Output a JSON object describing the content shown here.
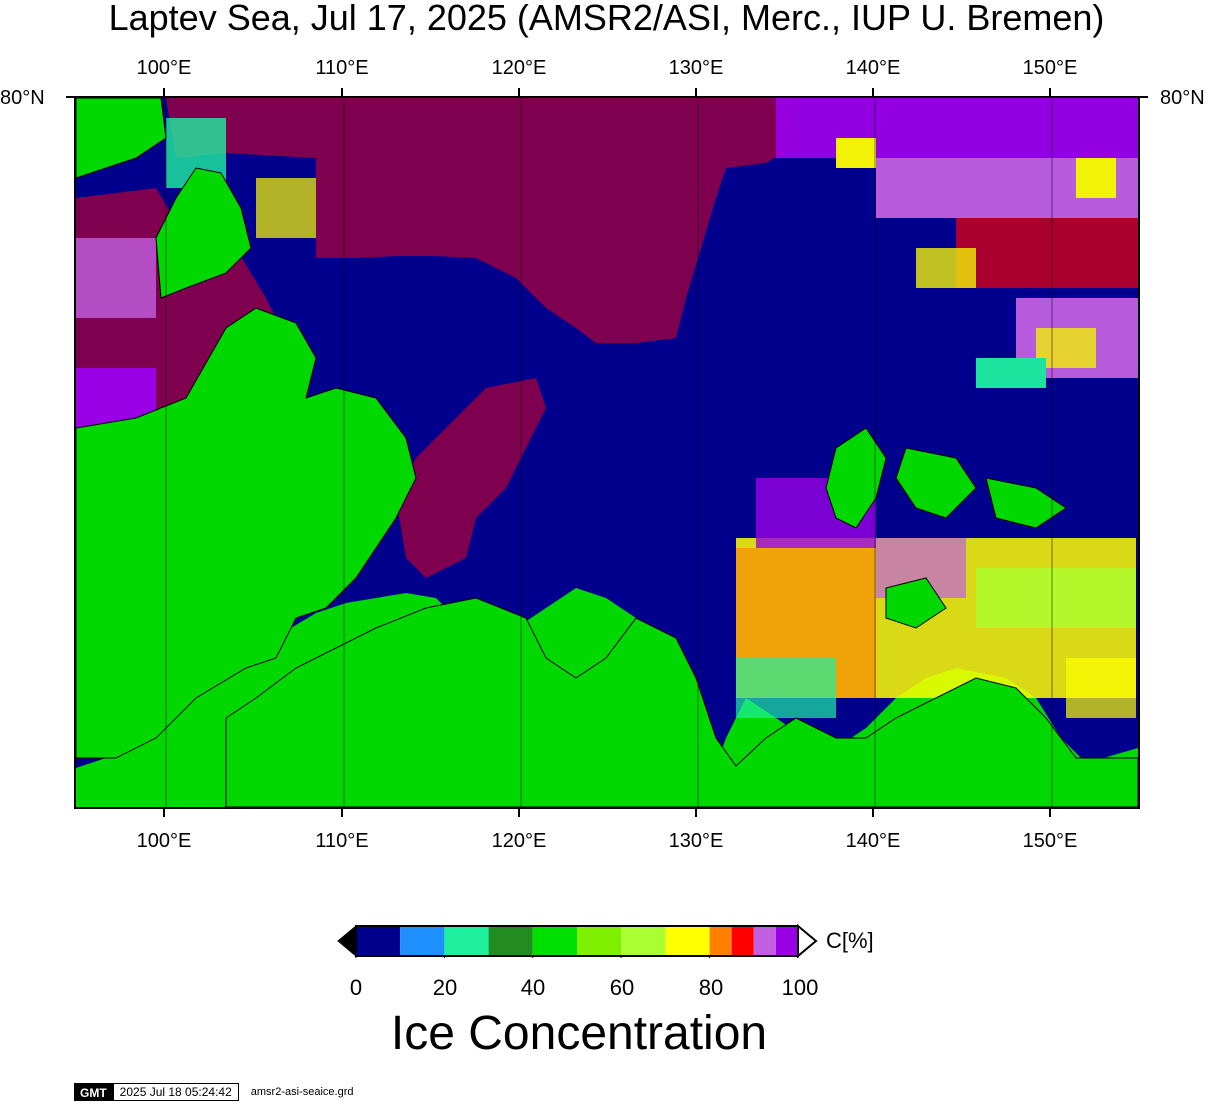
{
  "title": "Laptev Sea, Jul 17, 2025 (AMSR2/ASI, Merc., IUP U. Bremen)",
  "lat_labels": {
    "left": "80°N",
    "right": "80°N"
  },
  "lon_labels": [
    "100°E",
    "110°E",
    "120°E",
    "130°E",
    "140°E",
    "150°E"
  ],
  "colorbar": {
    "unit": "C[%]",
    "ticks": [
      "0",
      "20",
      "40",
      "60",
      "80",
      "100"
    ],
    "title": "Ice Concentration",
    "colors": [
      "#00008c",
      "#1e90ff",
      "#1ef0a0",
      "#228b22",
      "#00e000",
      "#7ff000",
      "#aaff32",
      "#ffff00",
      "#ff7f00",
      "#ff0000",
      "#c060e0",
      "#9a00e6"
    ]
  },
  "map_colors": {
    "land": "#00d800",
    "open_water": "#00008c",
    "shelf_ice": "#800050",
    "coast_line": "#000000"
  },
  "footer": {
    "logo": "GMT",
    "timestamp": "2025 Jul 18 05:24:42",
    "grid_file": "amsr2-asi-seaice.grd"
  }
}
